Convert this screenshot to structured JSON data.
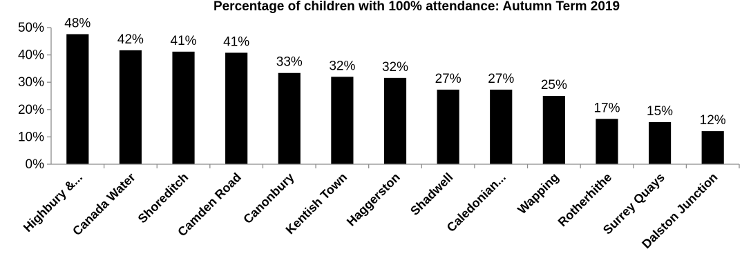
{
  "chart_data": {
    "type": "bar",
    "title": "Percentage of children with 100% attendance: Autumn Term 2019",
    "categories": [
      "Highbury &...",
      "Canada Water",
      "Shoreditch",
      "Camden Road",
      "Canonbury",
      "Kentish Town",
      "Haggerston",
      "Shadwell",
      "Caledonian...",
      "Wapping",
      "Rotherhithe",
      "Surrey Quays",
      "Dalston Junction"
    ],
    "values": [
      47.6,
      41.7,
      41.2,
      40.8,
      33.4,
      32.0,
      31.6,
      27.3,
      27.3,
      25.0,
      16.6,
      15.4,
      12.1
    ],
    "data_labels": [
      "48%",
      "42%",
      "41%",
      "41%",
      "33%",
      "32%",
      "32%",
      "27%",
      "27%",
      "25%",
      "17%",
      "15%",
      "12%"
    ],
    "ylim": [
      0,
      50
    ],
    "yticks": [
      0,
      10,
      20,
      30,
      40,
      50
    ],
    "ytick_labels": [
      "0%",
      "10%",
      "20%",
      "30%",
      "40%",
      "50%"
    ],
    "xlabel": "",
    "ylabel": "",
    "bar_color": "#000000",
    "grid": false,
    "legend": "none"
  }
}
